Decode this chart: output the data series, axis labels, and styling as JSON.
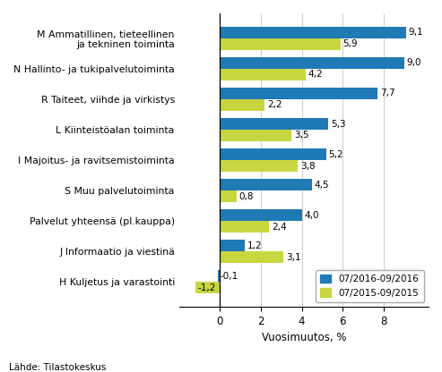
{
  "categories": [
    "M Ammatillinen, tieteellinen\nja tekninen toiminta",
    "N Hallinto- ja tukipalvelutoiminta",
    "R Taiteet, viihde ja virkistys",
    "L Kiinteistöalan toiminta",
    "I Majoitus- ja ravitsemistoiminta",
    "S Muu palvelutoiminta",
    "Palvelut yhteensä (pl.kauppa)",
    "J Informaatio ja viestinä",
    "H Kuljetus ja varastointi"
  ],
  "values_2016": [
    9.1,
    9.0,
    7.7,
    5.3,
    5.2,
    4.5,
    4.0,
    1.2,
    -0.1
  ],
  "values_2015": [
    5.9,
    4.2,
    2.2,
    3.5,
    3.8,
    0.8,
    2.4,
    3.1,
    -1.2
  ],
  "color_2016": "#1f7ab5",
  "color_2015": "#c8d640",
  "xlabel": "Vuosimuutos, %",
  "legend_2016": "07/2016-09/2016",
  "legend_2015": "07/2015-09/2015",
  "source": "Lähde: Tilastokeskus",
  "xlim": [
    -2.0,
    10.2
  ],
  "xticks": [
    0,
    2,
    4,
    6,
    8
  ],
  "bar_height": 0.38
}
